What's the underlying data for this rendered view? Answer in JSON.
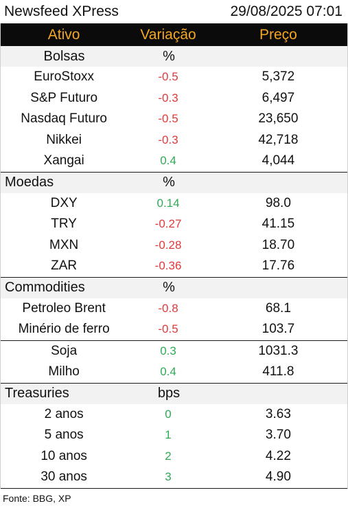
{
  "header": {
    "title": "Newsfeed XPress",
    "datetime": "29/08/2025 07:01"
  },
  "columns": {
    "asset": "Ativo",
    "change": "Variação",
    "price": "Preço"
  },
  "colors": {
    "header_bg": "#0b0b0b",
    "header_text": "#f5a623",
    "negative": "#e03a3a",
    "positive": "#2eab55",
    "section_bg": "#f2f2f2"
  },
  "sections": [
    {
      "title": "Bolsas",
      "unit": "%",
      "rows": [
        {
          "name": "EuroStoxx",
          "change": "-0.5",
          "price": "5,372"
        },
        {
          "name": "S&P Futuro",
          "change": "-0.3",
          "price": "6,497"
        },
        {
          "name": "Nasdaq Futuro",
          "change": "-0.5",
          "price": "23,650"
        },
        {
          "name": "Nikkei",
          "change": "-0.3",
          "price": "42,718"
        },
        {
          "name": "Xangai",
          "change": "0.4",
          "price": "4,044"
        }
      ]
    },
    {
      "title": "Moedas",
      "unit": "%",
      "rows": [
        {
          "name": "DXY",
          "change": "0.14",
          "price": "98.0"
        },
        {
          "name": "TRY",
          "change": "-0.27",
          "price": "41.15"
        },
        {
          "name": "MXN",
          "change": "-0.28",
          "price": "18.70"
        },
        {
          "name": "ZAR",
          "change": "-0.36",
          "price": "17.76"
        }
      ]
    },
    {
      "title": "Commodities",
      "unit": "%",
      "rows": [
        {
          "name": "Petroleo Brent",
          "change": "-0.8",
          "price": "68.1"
        },
        {
          "name": "Minério de ferro",
          "change": "-0.5",
          "price": "103.7"
        },
        {
          "name": "Soja",
          "change": "0.3",
          "price": "1031.3"
        },
        {
          "name": "Milho",
          "change": "0.4",
          "price": "411.8"
        }
      ]
    },
    {
      "title": "Treasuries",
      "unit": "bps",
      "rows": [
        {
          "name": "2 anos",
          "change": "0",
          "price": "3.63"
        },
        {
          "name": "5 anos",
          "change": "1",
          "price": "3.70"
        },
        {
          "name": "10 anos",
          "change": "2",
          "price": "4.22"
        },
        {
          "name": "30 anos",
          "change": "3",
          "price": "4.90"
        }
      ]
    }
  ],
  "footer": {
    "source": "Fonte: BBG, XP"
  }
}
